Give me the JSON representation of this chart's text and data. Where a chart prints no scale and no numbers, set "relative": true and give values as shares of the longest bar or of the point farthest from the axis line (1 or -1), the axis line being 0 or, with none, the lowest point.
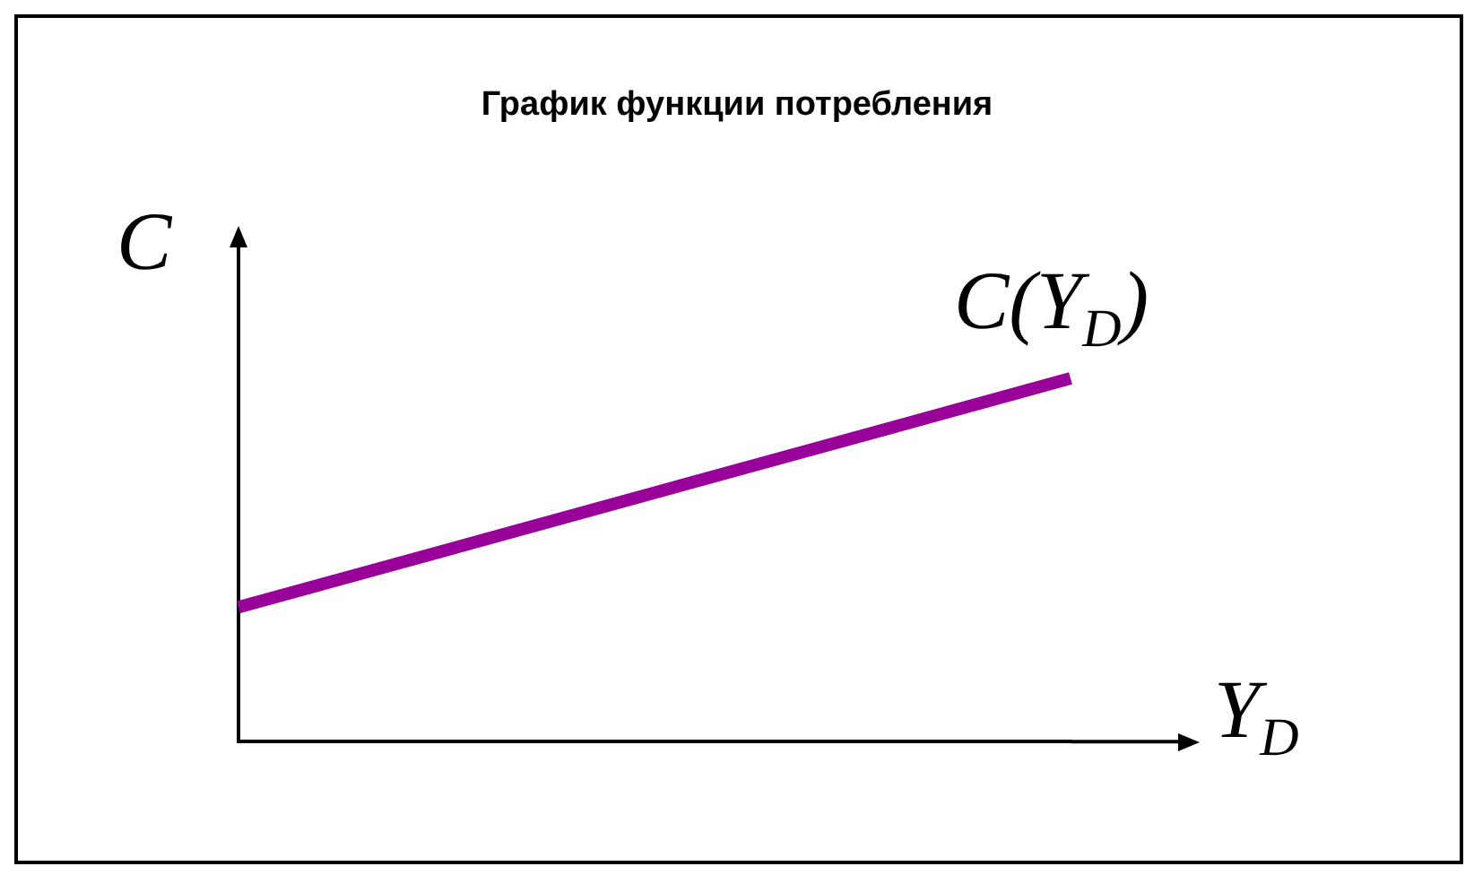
{
  "chart_data": {
    "type": "line",
    "title": "График функции потребления",
    "xlabel": "Y$_{D}$",
    "ylabel": "C",
    "relative": true,
    "categories": [
      null,
      null
    ],
    "series": [
      {
        "name": "C(Y$_{D}$)",
        "color": "#990099",
        "values": [
          0.37,
          1
        ]
      }
    ],
    "grid": false,
    "legend": false,
    "marker": "none",
    "line_style": "solid"
  }
}
